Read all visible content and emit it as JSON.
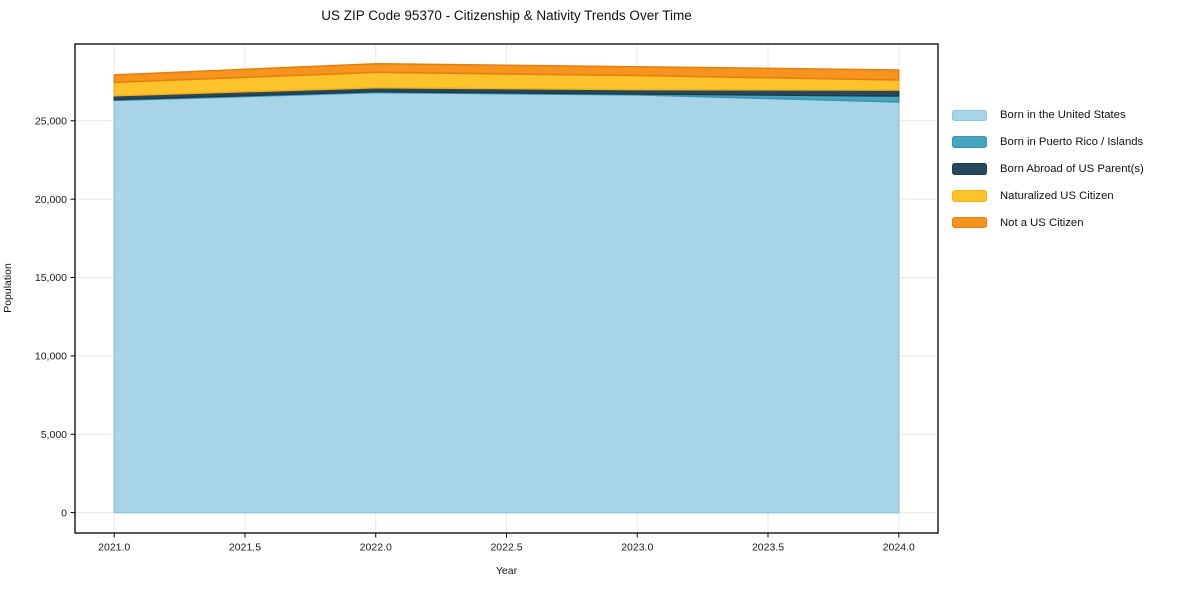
{
  "title": "US ZIP Code 95370 - Citizenship & Nativity Trends Over Time",
  "chart_data": {
    "type": "area",
    "stacked": true,
    "title": "US ZIP Code 95370 - Citizenship & Nativity Trends Over Time",
    "xlabel": "Year",
    "ylabel": "Population",
    "x": [
      2021,
      2022,
      2023,
      2024
    ],
    "series": [
      {
        "name": "Born in the United States",
        "color": "#a8d4e8",
        "edge": "#8fc5de",
        "values": [
          26300,
          26800,
          26650,
          26200
        ]
      },
      {
        "name": "Born in Puerto Rico / Islands",
        "color": "#46a5c0",
        "edge": "#3b93ad",
        "values": [
          50,
          60,
          60,
          380
        ]
      },
      {
        "name": "Born Abroad of US Parent(s)",
        "color": "#27485c",
        "edge": "#1f3c4d",
        "values": [
          250,
          250,
          280,
          380
        ]
      },
      {
        "name": "Naturalized US Citizen",
        "color": "#fdc32c",
        "edge": "#f3b213",
        "values": [
          850,
          980,
          900,
          640
        ]
      },
      {
        "name": "Not a US Citizen",
        "color": "#f7941f",
        "edge": "#e2800f",
        "values": [
          480,
          550,
          560,
          640
        ]
      }
    ],
    "x_ticks": [
      2021.0,
      2021.5,
      2022.0,
      2022.5,
      2023.0,
      2023.5,
      2024.0
    ],
    "x_tick_labels": [
      "2021.0",
      "2021.5",
      "2022.0",
      "2022.5",
      "2023.0",
      "2023.5",
      "2024.0"
    ],
    "y_ticks": [
      0,
      5000,
      10000,
      15000,
      20000,
      25000
    ],
    "y_tick_labels": [
      "0",
      "5,000",
      "10,000",
      "15,000",
      "20,000",
      "25,000"
    ],
    "xlim": [
      2020.85,
      2024.15
    ],
    "ylim": [
      -1300,
      29900
    ],
    "grid": true,
    "legend_position": "right",
    "colors": {
      "spine": "#000000",
      "grid": "#e9e9e9",
      "tick_text": "#1a1a1a",
      "background": "#ffffff"
    }
  }
}
